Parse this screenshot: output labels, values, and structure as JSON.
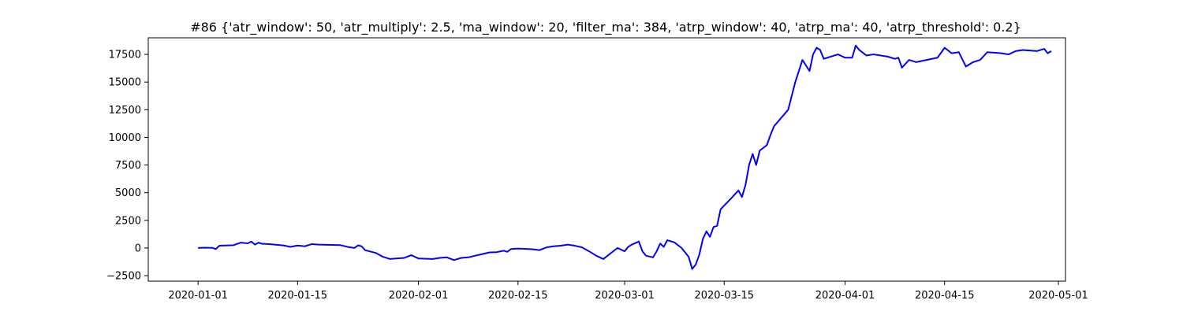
{
  "chart_data": {
    "type": "line",
    "title": "#86 {'atr_window': 50, 'atr_multiply': 2.5, 'ma_window': 20, 'filter_ma': 384, 'atrp_window': 40, 'atrp_ma': 40, 'atrp_threshold': 0.2}",
    "xlabel": "",
    "ylabel": "",
    "grid": false,
    "legend": "none",
    "xlim": [
      "2019-12-25",
      "2020-05-02"
    ],
    "ylim": [
      -3000,
      19000
    ],
    "x_ticks": [
      "2020-01-01",
      "2020-01-15",
      "2020-02-01",
      "2020-02-15",
      "2020-03-01",
      "2020-03-15",
      "2020-04-01",
      "2020-04-15",
      "2020-05-01"
    ],
    "y_ticks": [
      -2500,
      0,
      2500,
      5000,
      7500,
      10000,
      12500,
      15000,
      17500
    ],
    "y_tick_labels": [
      "−2500",
      "0",
      "2500",
      "5000",
      "7500",
      "10000",
      "12500",
      "15000",
      "17500"
    ],
    "series": [
      {
        "color": "#0000ff",
        "points": [
          [
            "2020-01-01",
            0
          ],
          [
            "2020-01-02",
            30
          ],
          [
            "2020-01-03",
            10
          ],
          [
            "2020-01-03 12:00",
            -100
          ],
          [
            "2020-01-04",
            200
          ],
          [
            "2020-01-06",
            250
          ],
          [
            "2020-01-07",
            480
          ],
          [
            "2020-01-08",
            420
          ],
          [
            "2020-01-08 12:00",
            580
          ],
          [
            "2020-01-09",
            300
          ],
          [
            "2020-01-09 12:00",
            480
          ],
          [
            "2020-01-10",
            380
          ],
          [
            "2020-01-11",
            350
          ],
          [
            "2020-01-13",
            230
          ],
          [
            "2020-01-14",
            100
          ],
          [
            "2020-01-15",
            220
          ],
          [
            "2020-01-16",
            150
          ],
          [
            "2020-01-17",
            350
          ],
          [
            "2020-01-18",
            300
          ],
          [
            "2020-01-21",
            260
          ],
          [
            "2020-01-22",
            100
          ],
          [
            "2020-01-23",
            0
          ],
          [
            "2020-01-23 12:00",
            230
          ],
          [
            "2020-01-24",
            150
          ],
          [
            "2020-01-24 12:00",
            -200
          ],
          [
            "2020-01-26",
            -450
          ],
          [
            "2020-01-27",
            -800
          ],
          [
            "2020-01-28",
            -1000
          ],
          [
            "2020-01-30",
            -900
          ],
          [
            "2020-01-31",
            -650
          ],
          [
            "2020-02-01",
            -950
          ],
          [
            "2020-02-03",
            -1000
          ],
          [
            "2020-02-04",
            -900
          ],
          [
            "2020-02-05",
            -850
          ],
          [
            "2020-02-06",
            -1100
          ],
          [
            "2020-02-07",
            -900
          ],
          [
            "2020-02-08",
            -850
          ],
          [
            "2020-02-09",
            -700
          ],
          [
            "2020-02-10",
            -550
          ],
          [
            "2020-02-11",
            -400
          ],
          [
            "2020-02-12",
            -380
          ],
          [
            "2020-02-13",
            -250
          ],
          [
            "2020-02-13 12:00",
            -350
          ],
          [
            "2020-02-14",
            -100
          ],
          [
            "2020-02-15",
            -50
          ],
          [
            "2020-02-16",
            -80
          ],
          [
            "2020-02-17",
            -120
          ],
          [
            "2020-02-18",
            -200
          ],
          [
            "2020-02-19",
            50
          ],
          [
            "2020-02-20",
            150
          ],
          [
            "2020-02-21",
            200
          ],
          [
            "2020-02-22",
            300
          ],
          [
            "2020-02-23",
            200
          ],
          [
            "2020-02-24",
            50
          ],
          [
            "2020-02-25",
            -300
          ],
          [
            "2020-02-26",
            -700
          ],
          [
            "2020-02-27",
            -1000
          ],
          [
            "2020-02-28",
            -500
          ],
          [
            "2020-02-29",
            0
          ],
          [
            "2020-03-01",
            -300
          ],
          [
            "2020-03-01 12:00",
            100
          ],
          [
            "2020-03-02",
            300
          ],
          [
            "2020-03-03",
            580
          ],
          [
            "2020-03-03 12:00",
            -300
          ],
          [
            "2020-03-04",
            -700
          ],
          [
            "2020-03-05",
            -850
          ],
          [
            "2020-03-05 12:00",
            -300
          ],
          [
            "2020-03-06",
            400
          ],
          [
            "2020-03-06 12:00",
            100
          ],
          [
            "2020-03-07",
            700
          ],
          [
            "2020-03-08",
            500
          ],
          [
            "2020-03-09",
            0
          ],
          [
            "2020-03-10",
            -800
          ],
          [
            "2020-03-10 12:00",
            -1900
          ],
          [
            "2020-03-11",
            -1500
          ],
          [
            "2020-03-11 12:00",
            -600
          ],
          [
            "2020-03-12",
            800
          ],
          [
            "2020-03-12 12:00",
            1500
          ],
          [
            "2020-03-13",
            1000
          ],
          [
            "2020-03-13 12:00",
            1900
          ],
          [
            "2020-03-14",
            2000
          ],
          [
            "2020-03-14 12:00",
            3500
          ],
          [
            "2020-03-16",
            4500
          ],
          [
            "2020-03-17",
            5200
          ],
          [
            "2020-03-17 12:00",
            4600
          ],
          [
            "2020-03-18",
            5700
          ],
          [
            "2020-03-18 12:00",
            7500
          ],
          [
            "2020-03-19",
            8500
          ],
          [
            "2020-03-19 12:00",
            7500
          ],
          [
            "2020-03-20",
            8800
          ],
          [
            "2020-03-21",
            9300
          ],
          [
            "2020-03-21 12:00",
            10200
          ],
          [
            "2020-03-22",
            11000
          ],
          [
            "2020-03-24",
            12500
          ],
          [
            "2020-03-25",
            15000
          ],
          [
            "2020-03-26",
            17000
          ],
          [
            "2020-03-26 12:00",
            16500
          ],
          [
            "2020-03-27",
            16000
          ],
          [
            "2020-03-27 12:00",
            17500
          ],
          [
            "2020-03-28",
            18100
          ],
          [
            "2020-03-28 12:00",
            17900
          ],
          [
            "2020-03-29",
            17100
          ],
          [
            "2020-03-31",
            17500
          ],
          [
            "2020-04-01",
            17200
          ],
          [
            "2020-04-02",
            17200
          ],
          [
            "2020-04-02 12:00",
            18300
          ],
          [
            "2020-04-03",
            17900
          ],
          [
            "2020-04-04",
            17400
          ],
          [
            "2020-04-05",
            17500
          ],
          [
            "2020-04-07",
            17300
          ],
          [
            "2020-04-08",
            17100
          ],
          [
            "2020-04-08 12:00",
            17200
          ],
          [
            "2020-04-09",
            16300
          ],
          [
            "2020-04-10",
            17000
          ],
          [
            "2020-04-11",
            16800
          ],
          [
            "2020-04-14",
            17200
          ],
          [
            "2020-04-15",
            18100
          ],
          [
            "2020-04-16",
            17600
          ],
          [
            "2020-04-17",
            17700
          ],
          [
            "2020-04-18",
            16400
          ],
          [
            "2020-04-19",
            16800
          ],
          [
            "2020-04-20",
            17000
          ],
          [
            "2020-04-21",
            17700
          ],
          [
            "2020-04-23",
            17600
          ],
          [
            "2020-04-24",
            17500
          ],
          [
            "2020-04-25",
            17800
          ],
          [
            "2020-04-26",
            17900
          ],
          [
            "2020-04-28",
            17800
          ],
          [
            "2020-04-29",
            18000
          ],
          [
            "2020-04-29 12:00",
            17600
          ],
          [
            "2020-04-30",
            17800
          ]
        ]
      }
    ]
  }
}
